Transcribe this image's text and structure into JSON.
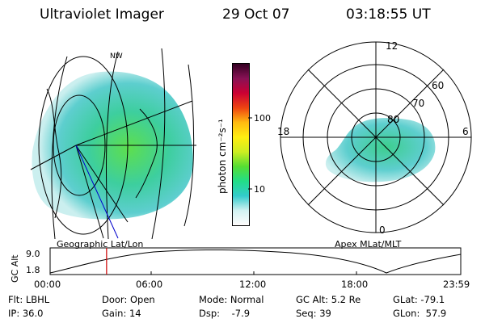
{
  "header": {
    "instrument": "Ultraviolet Imager",
    "date": "29 Oct 07",
    "time": "03:18:55 UT"
  },
  "left_panel": {
    "caption": "Geographic Lat/Lon",
    "map_label": "NW"
  },
  "right_panel": {
    "caption": "Apex MLat/MLT",
    "ring_labels": [
      "80",
      "70",
      "60"
    ],
    "clock_labels": {
      "top": "12",
      "right": "6",
      "bottom": "0",
      "left": "18"
    }
  },
  "colorbar": {
    "unit_label": "photon cm⁻²s⁻¹",
    "tick_labels": [
      "100",
      "10"
    ],
    "scale": "log",
    "colors": [
      "#fffcfc",
      "#d2f2f2",
      "#33cccc",
      "#22dd88",
      "#55dd33",
      "#ccee22",
      "#ffee11",
      "#ffbb11",
      "#ee4411",
      "#cc0033",
      "#881155",
      "#330022"
    ]
  },
  "altitude_chart": {
    "ylabel": "GC Alt",
    "ytick_labels": [
      "9.0",
      "1.8"
    ],
    "xtick_labels": [
      "00:00",
      "06:00",
      "12:00",
      "18:00",
      "23:59"
    ],
    "marker_time": "03:18",
    "marker_color": "#cc0000"
  },
  "info": {
    "row1": {
      "flt": "Flt: LBHL",
      "door": "Door: Open",
      "mode": "Mode: Normal",
      "gcalt": "GC Alt: 5.2 Re",
      "glat": "GLat: -79.1"
    },
    "row2": {
      "ip": "IP: 36.0",
      "gain": "Gain: 14",
      "dsp": "Dsp:    -7.9",
      "seq": "Seq: 39",
      "glon": "GLon:  57.9"
    }
  }
}
